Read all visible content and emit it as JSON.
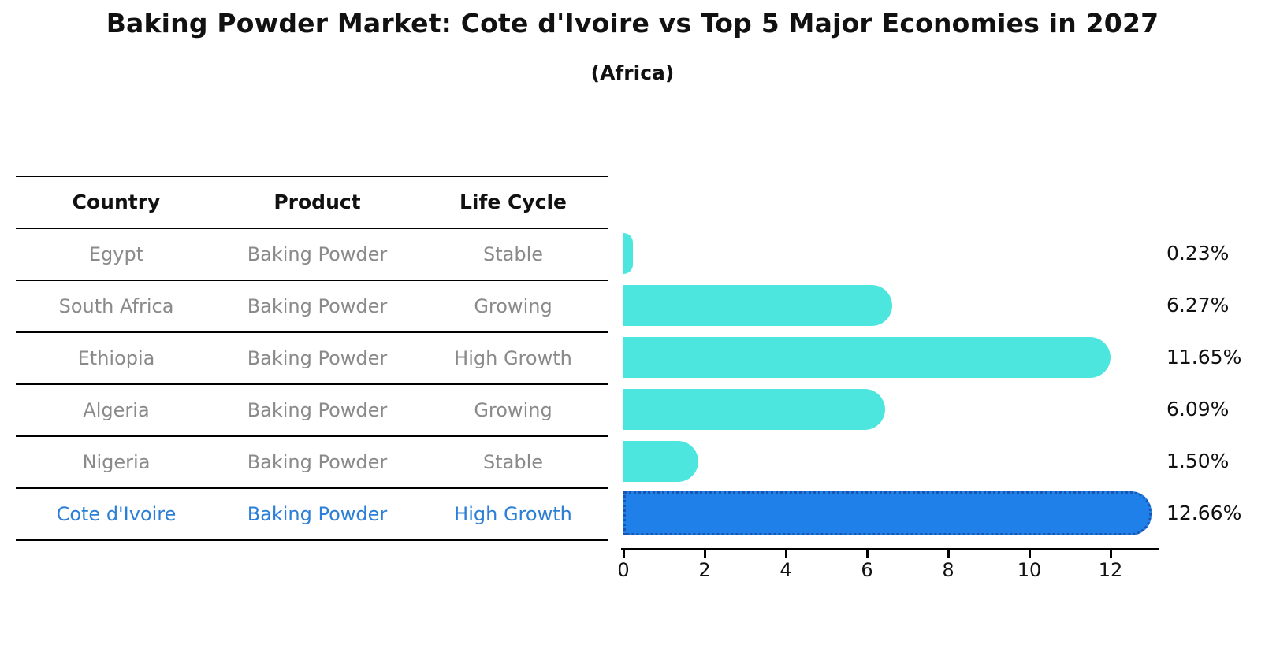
{
  "title": "Baking Powder Market: Cote d'Ivoire vs Top 5 Major Economies in 2027",
  "subtitle": "(Africa)",
  "table": {
    "columns": [
      "Country",
      "Product",
      "Life Cycle"
    ],
    "rows": [
      {
        "country": "Egypt",
        "product": "Baking Powder",
        "life_cycle": "Stable",
        "highlight": false
      },
      {
        "country": "South Africa",
        "product": "Baking Powder",
        "life_cycle": "Growing",
        "highlight": false
      },
      {
        "country": "Ethiopia",
        "product": "Baking Powder",
        "life_cycle": "High Growth",
        "highlight": false
      },
      {
        "country": "Algeria",
        "product": "Baking Powder",
        "life_cycle": "Growing",
        "highlight": false
      },
      {
        "country": "Nigeria",
        "product": "Baking Powder",
        "life_cycle": "Stable",
        "highlight": false
      },
      {
        "country": "Cote d'Ivoire",
        "product": "Baking Powder",
        "life_cycle": "High Growth",
        "highlight": true
      }
    ]
  },
  "chart_data": {
    "type": "bar",
    "orientation": "horizontal",
    "title": "Baking Powder Market: Cote d'Ivoire vs Top 5 Major Economies in 2027",
    "subtitle": "(Africa)",
    "categories": [
      "Egypt",
      "South Africa",
      "Ethiopia",
      "Algeria",
      "Nigeria",
      "Cote d'Ivoire"
    ],
    "values": [
      0.23,
      6.27,
      11.65,
      6.09,
      1.5,
      12.66
    ],
    "labels": [
      "0.23%",
      "6.27%",
      "11.65%",
      "6.09%",
      "1.50%",
      "12.66%"
    ],
    "xlabel": "",
    "ylabel": "",
    "xlim": [
      0,
      13.3
    ],
    "x_ticks": [
      0,
      2,
      4,
      6,
      8,
      10,
      12
    ],
    "grid": false,
    "legend": false,
    "highlight_category": "Cote d'Ivoire",
    "colors": {
      "bar_default": "#4DE6DF",
      "bar_highlight": "#1E80E8",
      "highlight_border": "#1A55B0",
      "row_text": "#8a8a8a",
      "highlight_text": "#2B7FD6",
      "header_text": "#111111",
      "axis": "#000000"
    }
  }
}
